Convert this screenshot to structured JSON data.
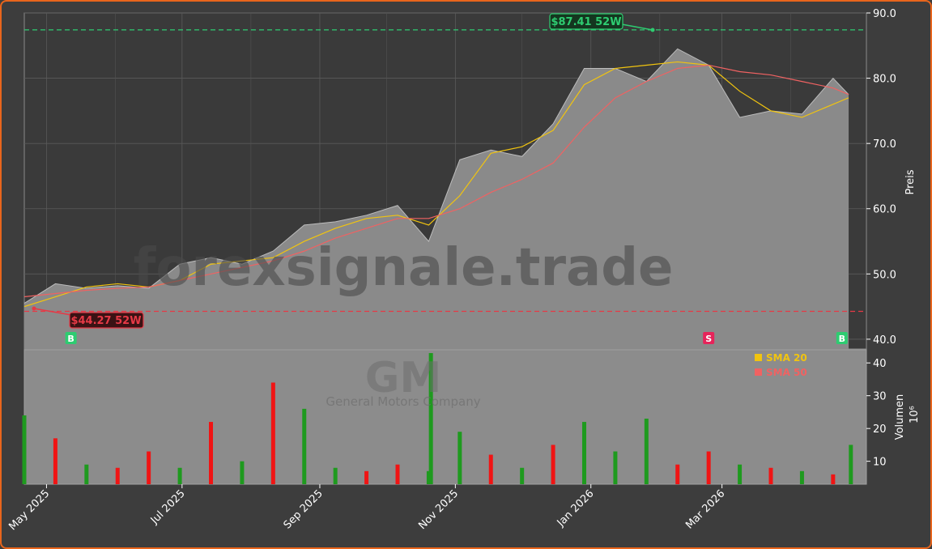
{
  "chart_data": [
    {
      "type": "line",
      "panel": "price",
      "ylabel": "Preis",
      "ylim": [
        38.5,
        90.0
      ],
      "yticks": [
        "40.0",
        "50.0",
        "60.0",
        "70.0",
        "80.0",
        "90.0"
      ],
      "x_dates": [
        "2025-04-21",
        "2025-05-05",
        "2025-05-19",
        "2025-06-02",
        "2025-06-16",
        "2025-06-30",
        "2025-07-14",
        "2025-07-28",
        "2025-08-11",
        "2025-08-25",
        "2025-09-08",
        "2025-09-22",
        "2025-10-06",
        "2025-10-20",
        "2025-11-03",
        "2025-11-17",
        "2025-12-01",
        "2025-12-15",
        "2025-12-29",
        "2026-01-12",
        "2026-01-26",
        "2026-02-09",
        "2026-02-23",
        "2026-03-09",
        "2026-03-23",
        "2026-04-06",
        "2026-04-20",
        "2026-04-27"
      ],
      "series": [
        {
          "name": "",
          "values": [
            45.5,
            48.5,
            47.8,
            48.2,
            47.8,
            51.5,
            52.5,
            51.5,
            53.5,
            57.5,
            58.0,
            59.0,
            60.5,
            55.0,
            67.5,
            69.0,
            68.0,
            73.0,
            81.5,
            81.5,
            79.5,
            84.5,
            82.0,
            74.0,
            75.0,
            74.5,
            80.0,
            77.5
          ]
        },
        {
          "name": "SMA 20",
          "values": [
            45.0,
            46.5,
            48.0,
            48.5,
            48.0,
            49.0,
            51.5,
            52.0,
            52.5,
            55.0,
            57.0,
            58.5,
            59.0,
            57.5,
            62.0,
            68.5,
            69.5,
            72.0,
            79.0,
            81.5,
            82.0,
            82.5,
            82.0,
            78.0,
            75.0,
            74.0,
            76.0,
            77.0
          ]
        },
        {
          "name": "SMA 50",
          "values": [
            46.5,
            47.0,
            47.5,
            47.8,
            48.0,
            49.0,
            50.0,
            51.0,
            52.0,
            53.5,
            55.5,
            57.0,
            58.5,
            58.5,
            60.0,
            62.5,
            64.5,
            67.0,
            72.5,
            77.0,
            79.5,
            81.5,
            82.0,
            81.0,
            80.5,
            79.5,
            78.5,
            77.5
          ]
        }
      ],
      "reference_lines": [
        {
          "label": "$87.41 52W",
          "value": 87.41,
          "color": "#2ecc71"
        },
        {
          "label": "$44.27 52W",
          "value": 44.27,
          "color": "#e63946"
        }
      ],
      "signals": [
        {
          "label": "B",
          "date": "2025-05-12",
          "color": "#2ecc71"
        },
        {
          "label": "S",
          "date": "2026-02-23",
          "color": "#e6245a"
        },
        {
          "label": "B",
          "date": "2026-04-24",
          "color": "#2ecc71"
        }
      ],
      "legend": [
        {
          "name": "SMA 20",
          "color": "#f1c40f"
        },
        {
          "name": "SMA 50",
          "color": "#f06262"
        }
      ],
      "legend_position": "bottom-right",
      "grid": true
    },
    {
      "type": "bar",
      "panel": "volume",
      "ylabel": "Volumen",
      "yunit_label": "10⁶",
      "ylim": [
        3,
        44
      ],
      "yticks": [
        "10",
        "20",
        "30",
        "40"
      ],
      "x_dates": [
        "2025-04-21",
        "2025-05-05",
        "2025-05-19",
        "2025-06-02",
        "2025-06-16",
        "2025-06-30",
        "2025-07-14",
        "2025-07-28",
        "2025-08-11",
        "2025-08-25",
        "2025-09-08",
        "2025-09-22",
        "2025-10-06",
        "2025-10-20",
        "2025-10-21",
        "2025-11-03",
        "2025-11-17",
        "2025-12-01",
        "2025-12-15",
        "2025-12-29",
        "2026-01-12",
        "2026-01-26",
        "2026-02-09",
        "2026-02-23",
        "2026-03-09",
        "2026-03-23",
        "2026-04-06",
        "2026-04-20",
        "2026-04-28"
      ],
      "values": [
        24,
        17,
        9,
        8,
        13,
        8,
        22,
        10,
        34,
        26,
        8,
        7,
        9,
        7,
        43,
        19,
        12,
        8,
        15,
        22,
        13,
        23,
        9,
        13,
        9,
        8,
        7,
        6,
        15
      ],
      "colors": [
        "green",
        "red",
        "green",
        "red",
        "red",
        "green",
        "red",
        "green",
        "red",
        "green",
        "green",
        "red",
        "red",
        "green",
        "green",
        "green",
        "red",
        "green",
        "red",
        "green",
        "green",
        "green",
        "red",
        "red",
        "green",
        "red",
        "green",
        "red",
        "green"
      ],
      "xticks": [
        {
          "label": "May 2025",
          "date": "2025-05-01"
        },
        {
          "label": "Jul 2025",
          "date": "2025-07-01"
        },
        {
          "label": "Sep 2025",
          "date": "2025-09-01"
        },
        {
          "label": "Nov 2025",
          "date": "2025-11-01"
        },
        {
          "label": "Jan 2026",
          "date": "2026-01-01"
        },
        {
          "label": "Mar 2026",
          "date": "2026-03-01"
        }
      ]
    }
  ],
  "watermark": {
    "site": "forexsignale.trade",
    "ticker": "GM",
    "company": "General Motors Company"
  }
}
